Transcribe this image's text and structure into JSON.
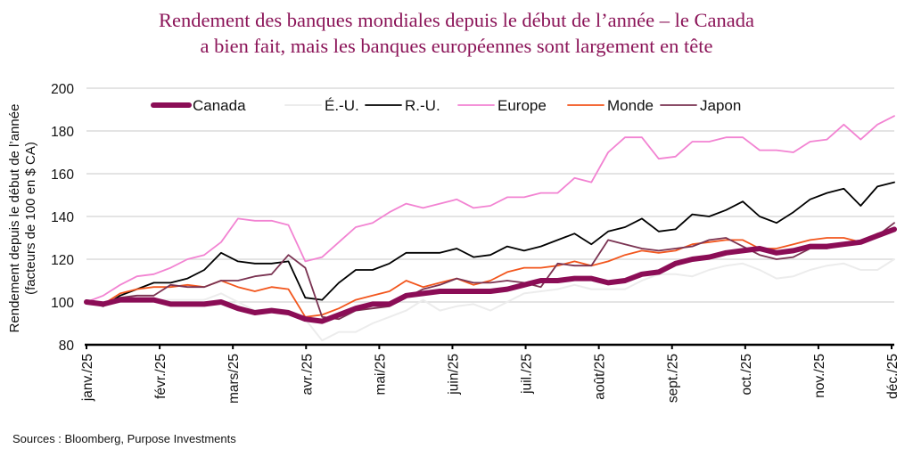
{
  "chart_data": {
    "type": "line",
    "title_line1": "Rendement des banques mondiales depuis le début de l’année – le Canada",
    "title_line2": "a bien fait, mais les banques européennes sont largement en tête",
    "ylabel_line1": "Rendement depuis le début de l’année",
    "ylabel_line2": "(facteurs de 100 en $ CA)",
    "xlabel": "",
    "ylim": [
      80,
      200
    ],
    "yticks": [
      80,
      100,
      120,
      140,
      160,
      180,
      200
    ],
    "grid": true,
    "legend_placement": "top",
    "x_tick_labels": [
      "janv./25",
      "févr./25",
      "mars/25",
      "avr./25",
      "mai/25",
      "juin/25",
      "juil./25",
      "août/25",
      "sept./25",
      "oct./25",
      "nov./25",
      "déc./25"
    ],
    "series": [
      {
        "name": "Canada",
        "color": "#8B0D56",
        "width": 6,
        "values": [
          100,
          99,
          101,
          101,
          101,
          99,
          99,
          99,
          100,
          97,
          95,
          96,
          95,
          92,
          91,
          94,
          97,
          99,
          99,
          103,
          104,
          105,
          105,
          105,
          105,
          106,
          108,
          110,
          110,
          111,
          111,
          109,
          110,
          113,
          114,
          118,
          120,
          121,
          123,
          124,
          125,
          123,
          124,
          126,
          126,
          127,
          128,
          131,
          134
        ]
      },
      {
        "name": "É.-U.",
        "color": "#ECECEC",
        "width": 2,
        "values": [
          100,
          99,
          101,
          101,
          101,
          101,
          101,
          101,
          104,
          100,
          96,
          97,
          96,
          92,
          82,
          86,
          86,
          90,
          93,
          96,
          101,
          96,
          98,
          99,
          96,
          100,
          104,
          105,
          106,
          108,
          106,
          106,
          106,
          110,
          113,
          113,
          112,
          115,
          117,
          118,
          115,
          111,
          112,
          115,
          117,
          118,
          115,
          115,
          120
        ]
      },
      {
        "name": "R.-U.",
        "color": "#000000",
        "width": 1.8,
        "values": [
          100,
          98,
          103,
          106,
          109,
          109,
          111,
          115,
          123,
          119,
          118,
          118,
          119,
          102,
          101,
          109,
          115,
          115,
          118,
          123,
          123,
          123,
          125,
          121,
          122,
          126,
          124,
          126,
          129,
          132,
          127,
          133,
          135,
          139,
          133,
          134,
          141,
          140,
          143,
          147,
          140,
          137,
          142,
          148,
          151,
          153,
          145,
          154,
          156
        ]
      },
      {
        "name": "Europe",
        "color": "#F283D2",
        "width": 1.8,
        "values": [
          100,
          103,
          108,
          112,
          113,
          116,
          120,
          122,
          128,
          139,
          138,
          138,
          136,
          119,
          121,
          128,
          135,
          137,
          142,
          146,
          144,
          146,
          148,
          144,
          145,
          149,
          149,
          151,
          151,
          158,
          156,
          170,
          177,
          177,
          167,
          168,
          175,
          175,
          177,
          177,
          171,
          171,
          170,
          175,
          176,
          183,
          176,
          183,
          187
        ]
      },
      {
        "name": "Monde",
        "color": "#F2561D",
        "width": 1.8,
        "values": [
          100,
          99,
          104,
          106,
          107,
          107,
          108,
          107,
          110,
          107,
          105,
          107,
          106,
          93,
          94,
          97,
          101,
          103,
          105,
          110,
          107,
          109,
          111,
          108,
          110,
          114,
          116,
          116,
          117,
          119,
          117,
          119,
          122,
          124,
          123,
          124,
          127,
          128,
          129,
          129,
          125,
          125,
          127,
          129,
          130,
          130,
          128,
          132,
          134
        ]
      },
      {
        "name": "Japon",
        "color": "#7A3352",
        "width": 1.8,
        "values": [
          100,
          99,
          102,
          103,
          103,
          108,
          107,
          107,
          110,
          110,
          112,
          113,
          122,
          116,
          93,
          92,
          96,
          97,
          98,
          102,
          106,
          108,
          111,
          109,
          109,
          110,
          109,
          107,
          118,
          117,
          117,
          129,
          127,
          125,
          124,
          125,
          126,
          129,
          130,
          126,
          122,
          120,
          121,
          125,
          125,
          127,
          128,
          131,
          137
        ]
      }
    ],
    "source": "Sources : Bloomberg, Purpose Investments"
  }
}
